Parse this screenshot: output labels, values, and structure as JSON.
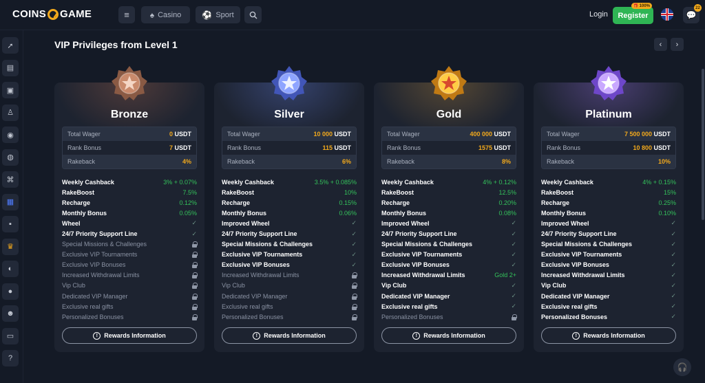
{
  "header": {
    "logo_left": "COINS",
    "logo_right": "GAME",
    "menu_icon": "menu-icon",
    "casino_label": "Casino",
    "sport_label": "Sport",
    "login_label": "Login",
    "register_label": "Register",
    "register_badge": "100%",
    "chat_count": "22"
  },
  "page": {
    "title": "VIP Privileges from Level 1",
    "prev_icon": "chevron-left-icon",
    "next_icon": "chevron-right-icon"
  },
  "colors": {
    "accent_green": "#2fb554",
    "accent_orange": "#f2a91c",
    "bg": "#141a26",
    "card": "#1d2330"
  },
  "cards": [
    {
      "name": "Bronze",
      "stats": [
        {
          "label": "Total Wager",
          "num": "0",
          "unit": "USDT"
        },
        {
          "label": "Rank Bonus",
          "num": "7",
          "unit": "USDT"
        },
        {
          "label": "Rakeback",
          "value": "4%"
        }
      ],
      "features": [
        {
          "label": "Weekly Cashback",
          "value": "3% + 0.07%",
          "locked": false
        },
        {
          "label": "RakeBoost",
          "value": "7.5%",
          "locked": false
        },
        {
          "label": "Recharge",
          "value": "0.12%",
          "locked": false
        },
        {
          "label": "Monthly Bonus",
          "value": "0.05%",
          "locked": false
        },
        {
          "label": "Wheel",
          "value": "✓",
          "locked": false
        },
        {
          "label": "24/7 Priority Support Line",
          "value": "✓",
          "locked": false
        },
        {
          "label": "Special Missions & Challenges",
          "value": "",
          "locked": true
        },
        {
          "label": "Exclusive VIP Tournaments",
          "value": "",
          "locked": true
        },
        {
          "label": "Exclusive VIP Bonuses",
          "value": "",
          "locked": true
        },
        {
          "label": "Increased Withdrawal Limits",
          "value": "",
          "locked": true
        },
        {
          "label": "Vip Club",
          "value": "",
          "locked": true
        },
        {
          "label": "Dedicated VIP Manager",
          "value": "",
          "locked": true
        },
        {
          "label": "Exclusive real gifts",
          "value": "",
          "locked": true
        },
        {
          "label": "Personalized Bonuses",
          "value": "",
          "locked": true
        }
      ],
      "rewards_label": "Rewards Information"
    },
    {
      "name": "Silver",
      "stats": [
        {
          "label": "Total Wager",
          "num": "10 000",
          "unit": "USDT"
        },
        {
          "label": "Rank Bonus",
          "num": "115",
          "unit": "USDT"
        },
        {
          "label": "Rakeback",
          "value": "6%"
        }
      ],
      "features": [
        {
          "label": "Weekly Cashback",
          "value": "3.5% + 0.085%",
          "locked": false
        },
        {
          "label": "RakeBoost",
          "value": "10%",
          "locked": false
        },
        {
          "label": "Recharge",
          "value": "0.15%",
          "locked": false
        },
        {
          "label": "Monthly Bonus",
          "value": "0.06%",
          "locked": false
        },
        {
          "label": "Improved Wheel",
          "value": "✓",
          "locked": false
        },
        {
          "label": "24/7 Priority Support Line",
          "value": "✓",
          "locked": false
        },
        {
          "label": "Special Missions & Challenges",
          "value": "✓",
          "locked": false
        },
        {
          "label": "Exclusive VIP Tournaments",
          "value": "✓",
          "locked": false
        },
        {
          "label": "Exclusive VIP Bonuses",
          "value": "✓",
          "locked": false
        },
        {
          "label": "Increased Withdrawal Limits",
          "value": "",
          "locked": true
        },
        {
          "label": "Vip Club",
          "value": "",
          "locked": true
        },
        {
          "label": "Dedicated VIP Manager",
          "value": "",
          "locked": true
        },
        {
          "label": "Exclusive real gifts",
          "value": "",
          "locked": true
        },
        {
          "label": "Personalized Bonuses",
          "value": "",
          "locked": true
        }
      ],
      "rewards_label": "Rewards Information"
    },
    {
      "name": "Gold",
      "stats": [
        {
          "label": "Total Wager",
          "num": "400 000",
          "unit": "USDT"
        },
        {
          "label": "Rank Bonus",
          "num": "1575",
          "unit": "USDT"
        },
        {
          "label": "Rakeback",
          "value": "8%"
        }
      ],
      "features": [
        {
          "label": "Weekly Cashback",
          "value": "4% + 0.12%",
          "locked": false
        },
        {
          "label": "RakeBoost",
          "value": "12.5%",
          "locked": false
        },
        {
          "label": "Recharge",
          "value": "0.20%",
          "locked": false
        },
        {
          "label": "Monthly Bonus",
          "value": "0.08%",
          "locked": false
        },
        {
          "label": "Improved Wheel",
          "value": "✓",
          "locked": false
        },
        {
          "label": "24/7 Priority Support Line",
          "value": "✓",
          "locked": false
        },
        {
          "label": "Special Missions & Challenges",
          "value": "✓",
          "locked": false
        },
        {
          "label": "Exclusive VIP Tournaments",
          "value": "✓",
          "locked": false
        },
        {
          "label": "Exclusive VIP Bonuses",
          "value": "✓",
          "locked": false
        },
        {
          "label": "Increased Withdrawal Limits",
          "value": "Gold 2+",
          "locked": false
        },
        {
          "label": "Vip Club",
          "value": "✓",
          "locked": false
        },
        {
          "label": "Dedicated VIP Manager",
          "value": "✓",
          "locked": false
        },
        {
          "label": "Exclusive real gifts",
          "value": "✓",
          "locked": false
        },
        {
          "label": "Personalized Bonuses",
          "value": "",
          "locked": true
        }
      ],
      "rewards_label": "Rewards Information"
    },
    {
      "name": "Platinum",
      "stats": [
        {
          "label": "Total Wager",
          "num": "7 500 000",
          "unit": "USDT"
        },
        {
          "label": "Rank Bonus",
          "num": "10 800",
          "unit": "USDT"
        },
        {
          "label": "Rakeback",
          "value": "10%"
        }
      ],
      "features": [
        {
          "label": "Weekly Cashback",
          "value": "4% + 0.15%",
          "locked": false
        },
        {
          "label": "RakeBoost",
          "value": "15%",
          "locked": false
        },
        {
          "label": "Recharge",
          "value": "0.25%",
          "locked": false
        },
        {
          "label": "Monthly Bonus",
          "value": "0.10%",
          "locked": false
        },
        {
          "label": "Improved Wheel",
          "value": "✓",
          "locked": false
        },
        {
          "label": "24/7 Priority Support Line",
          "value": "✓",
          "locked": false
        },
        {
          "label": "Special Missions & Challenges",
          "value": "✓",
          "locked": false
        },
        {
          "label": "Exclusive VIP Tournaments",
          "value": "✓",
          "locked": false
        },
        {
          "label": "Exclusive VIP Bonuses",
          "value": "✓",
          "locked": false
        },
        {
          "label": "Increased Withdrawal Limits",
          "value": "✓",
          "locked": false
        },
        {
          "label": "Vip Club",
          "value": "✓",
          "locked": false
        },
        {
          "label": "Dedicated VIP Manager",
          "value": "✓",
          "locked": false
        },
        {
          "label": "Exclusive real gifts",
          "value": "✓",
          "locked": false
        },
        {
          "label": "Personalized Bonuses",
          "value": "✓",
          "locked": false
        }
      ],
      "rewards_label": "Rewards Information"
    }
  ],
  "sidebar": {
    "items": [
      {
        "icon": "rocket-icon",
        "glyph": "➚"
      },
      {
        "icon": "slots-icon",
        "glyph": "▤"
      },
      {
        "icon": "cards-icon",
        "glyph": "▣"
      },
      {
        "icon": "live-dealer-icon",
        "glyph": "♙"
      },
      {
        "icon": "chip-icon",
        "glyph": "◉"
      },
      {
        "icon": "basketball-icon",
        "glyph": "◍"
      },
      {
        "icon": "gamepad-icon",
        "glyph": "⌘"
      },
      {
        "icon": "gift-icon",
        "glyph": "▦"
      },
      {
        "icon": "grid-icon",
        "glyph": "▪"
      },
      {
        "icon": "crown-icon",
        "glyph": "♛"
      },
      {
        "icon": "casino-chip-icon",
        "glyph": "◐"
      },
      {
        "icon": "coin-icon",
        "glyph": "●"
      },
      {
        "icon": "users-icon",
        "glyph": "☻"
      },
      {
        "icon": "wallet-icon",
        "glyph": "▭"
      },
      {
        "icon": "help-icon",
        "glyph": "?"
      }
    ]
  }
}
